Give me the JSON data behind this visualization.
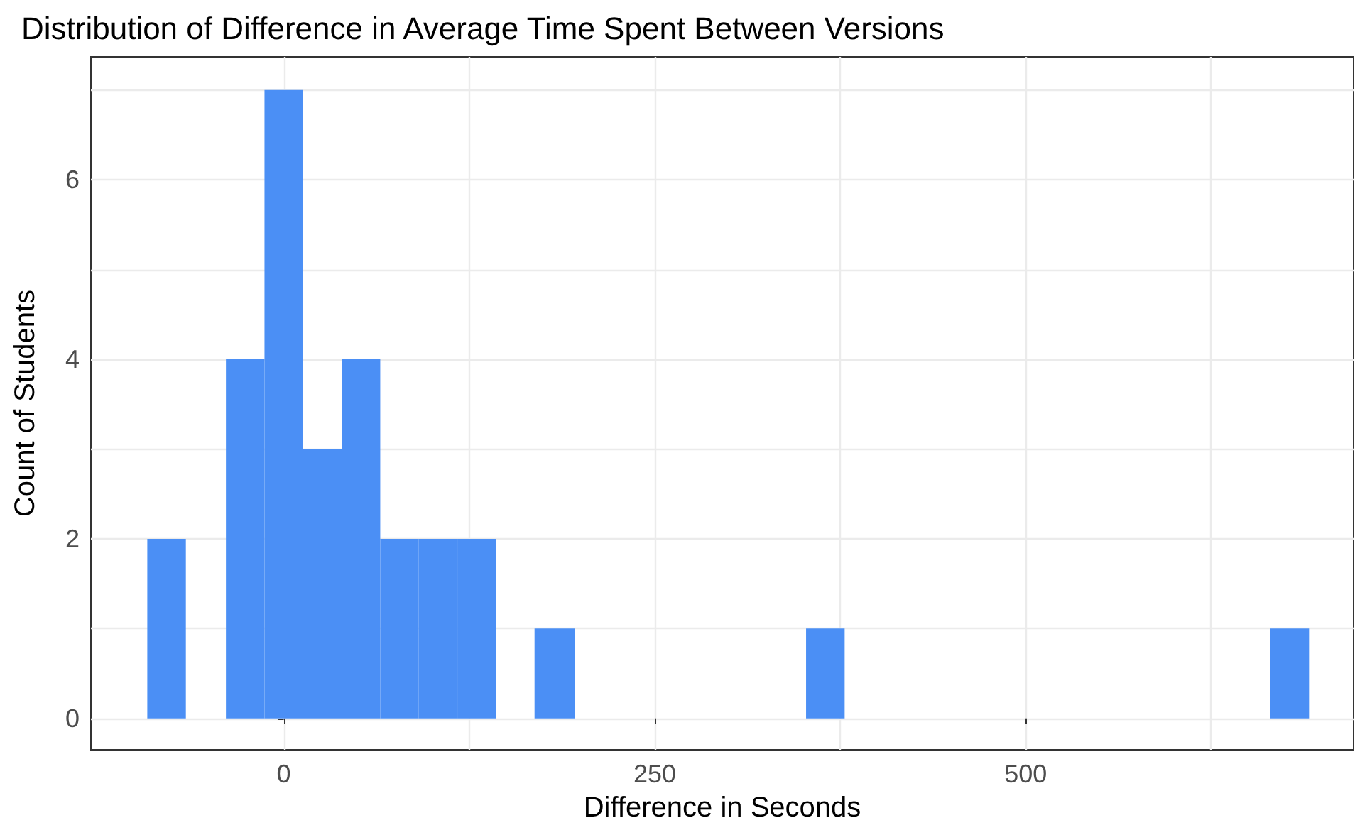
{
  "chart_data": {
    "type": "histogram",
    "title": "Distribution of Difference in Average Time Spent Between Versions",
    "xlabel": "Difference in Seconds",
    "ylabel": "Count of Students",
    "color": "#4b8ff5",
    "bins": [
      -92,
      -66,
      -39,
      -13,
      13,
      39,
      65,
      91,
      117,
      143,
      169,
      196,
      352,
      378,
      665,
      691
    ],
    "values": [
      2,
      0,
      4,
      7,
      3,
      4,
      2,
      2,
      2,
      0,
      1,
      0,
      1,
      0,
      1
    ],
    "xlim": [
      -130,
      721
    ],
    "xticks": [
      0,
      {
        "value": 125,
        "label": null
      },
      250,
      {
        "value": 375,
        "label": null
      },
      500,
      {
        "value": 625,
        "label": null
      }
    ],
    "ylim": [
      -0.35,
      7.37
    ],
    "yticks": [
      0,
      {
        "value": 1,
        "label": null
      },
      2,
      {
        "value": 3,
        "label": null
      },
      4,
      {
        "value": 5,
        "label": null
      },
      6,
      {
        "value": 7,
        "label": null
      }
    ],
    "grid": true
  }
}
